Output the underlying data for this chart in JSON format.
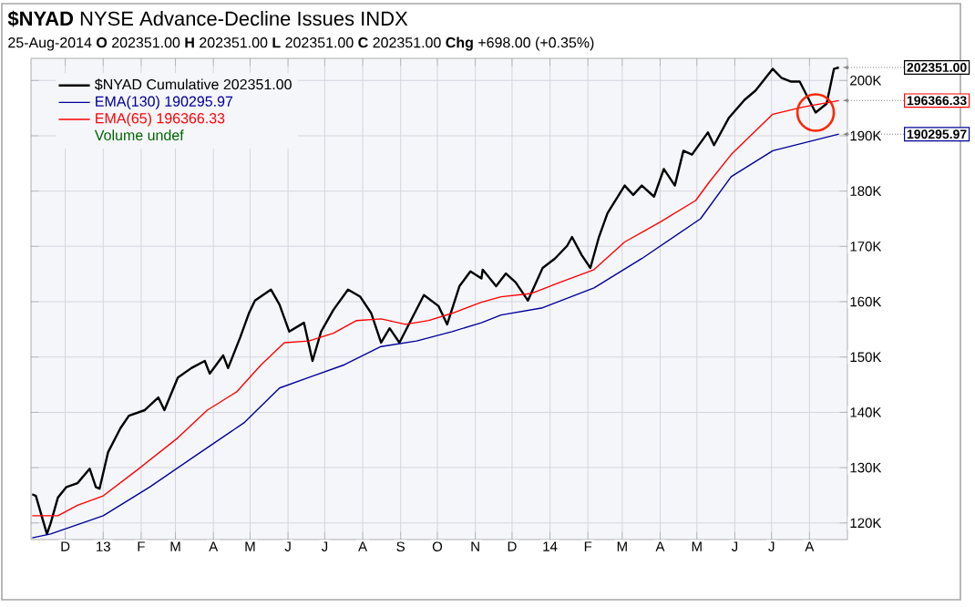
{
  "chart_data": {
    "type": "line",
    "title": "**$NYAD** NYSE Advance-Decline Issues INDX",
    "subtitle": "25-Aug-2014  **O** 202351.00  **H** 202351.00  **L** 202351.00  **C** 202351.00  **Chg** +698.00 (+0.35%)",
    "series": [
      {
        "name": "$NYAD Cumulative 202351.00",
        "color": "#000000",
        "x": [
          "2012-11-04",
          "2012-11-07",
          "2012-11-16",
          "2012-11-19",
          "2012-11-25",
          "2012-12-02",
          "2012-12-11",
          "2012-12-21",
          "2012-12-26",
          "2012-12-29",
          "2013-01-05",
          "2013-01-15",
          "2013-01-22",
          "2013-02-04",
          "2013-02-15",
          "2013-02-20",
          "2013-03-03",
          "2013-03-14",
          "2013-03-25",
          "2013-03-29",
          "2013-04-09",
          "2013-04-13",
          "2013-04-23",
          "2013-04-30",
          "2013-05-05",
          "2013-05-18",
          "2013-05-25",
          "2013-06-02",
          "2013-06-14",
          "2013-06-21",
          "2013-06-28",
          "2013-07-08",
          "2013-07-20",
          "2013-07-30",
          "2013-08-08",
          "2013-08-16",
          "2013-08-23",
          "2013-08-31",
          "2013-09-10",
          "2013-09-20",
          "2013-10-02",
          "2013-10-09",
          "2013-10-19",
          "2013-10-28",
          "2013-11-06",
          "2013-11-07",
          "2013-11-18",
          "2013-11-26",
          "2013-12-04",
          "2013-12-14",
          "2013-12-26",
          "2014-01-05",
          "2014-01-15",
          "2014-01-19",
          "2014-01-27",
          "2014-02-03",
          "2014-02-10",
          "2014-02-17",
          "2014-03-03",
          "2014-03-10",
          "2014-03-17",
          "2014-03-27",
          "2014-04-04",
          "2014-04-13",
          "2014-04-20",
          "2014-04-27",
          "2014-05-10",
          "2014-05-15",
          "2014-05-27",
          "2014-06-09",
          "2014-06-18",
          "2014-07-02",
          "2014-07-09",
          "2014-07-17",
          "2014-07-24",
          "2014-07-30",
          "2014-08-06",
          "2014-08-15",
          "2014-08-21",
          "2014-08-25"
        ],
        "values": [
          125200,
          124900,
          118000,
          119900,
          124600,
          126500,
          127200,
          129800,
          126500,
          126200,
          132800,
          137100,
          139400,
          140400,
          142700,
          140400,
          146300,
          148000,
          149300,
          147000,
          150300,
          148000,
          153600,
          157900,
          160200,
          162200,
          159500,
          154600,
          156200,
          149300,
          154600,
          158500,
          162200,
          160900,
          157900,
          152600,
          155200,
          152600,
          156900,
          161200,
          159200,
          155900,
          162800,
          165500,
          164200,
          165800,
          162800,
          165100,
          163500,
          160200,
          166100,
          167800,
          170100,
          171700,
          168400,
          166100,
          171700,
          176000,
          181000,
          179300,
          181000,
          179000,
          184000,
          181000,
          187300,
          186600,
          190600,
          188300,
          193200,
          196500,
          198200,
          202100,
          200500,
          199800,
          199800,
          197200,
          194200,
          195800,
          202100,
          202351
        ]
      },
      {
        "name": "EMA(130) 190295.97",
        "color": "#000099",
        "x": [
          "2012-11-04",
          "2012-11-19",
          "2013-01-01",
          "2013-02-08",
          "2013-03-17",
          "2013-04-26",
          "2013-05-25",
          "2013-06-18",
          "2013-07-17",
          "2013-08-16",
          "2013-09-14",
          "2013-10-13",
          "2013-11-06",
          "2013-11-22",
          "2013-12-26",
          "2014-02-06",
          "2014-03-17",
          "2014-05-04",
          "2014-05-29",
          "2014-07-02",
          "2014-08-25"
        ],
        "values": [
          117300,
          118000,
          121300,
          126500,
          132100,
          138100,
          144400,
          146300,
          148600,
          151900,
          152900,
          154600,
          156200,
          157600,
          158900,
          162500,
          167800,
          175000,
          182600,
          187300,
          190296
        ]
      },
      {
        "name": "EMA(65) 196366.33",
        "color": "#ff0000",
        "x": [
          "2012-11-04",
          "2012-11-25",
          "2012-12-11",
          "2013-01-01",
          "2013-01-30",
          "2013-03-03",
          "2013-03-27",
          "2013-04-20",
          "2013-05-10",
          "2013-05-29",
          "2013-06-18",
          "2013-07-08",
          "2013-07-27",
          "2013-08-16",
          "2013-09-05",
          "2013-09-24",
          "2013-10-13",
          "2013-11-06",
          "2013-11-22",
          "2013-12-17",
          "2014-01-09",
          "2014-02-06",
          "2014-03-03",
          "2014-04-01",
          "2014-04-30",
          "2014-05-11",
          "2014-05-29",
          "2014-07-02",
          "2014-07-27",
          "2014-08-25"
        ],
        "values": [
          121300,
          121300,
          123200,
          124900,
          129800,
          135400,
          140400,
          143700,
          148600,
          152600,
          152900,
          154300,
          156600,
          156900,
          155900,
          156600,
          157900,
          159900,
          160900,
          161500,
          163500,
          165800,
          170800,
          174400,
          178300,
          181600,
          186600,
          193900,
          195200,
          196366
        ]
      }
    ],
    "annotations": [
      "Volume undef",
      {
        "text": "202351.00",
        "x": "2014-08-25",
        "y": 202351
      },
      {
        "text": "196366.33",
        "x": "2014-08-25",
        "y": 196366
      },
      {
        "text": "190295.97",
        "x": "2014-08-25",
        "y": 190296
      }
    ],
    "xlim": [
      "2012-11-03",
      "2014-09-01"
    ],
    "xticks": [
      {
        "value": "2012-12-01",
        "label": "D"
      },
      {
        "value": "2013-01-01",
        "label": "13"
      },
      {
        "value": "2013-02-01",
        "label": "F"
      },
      {
        "value": "2013-03-01",
        "label": "M"
      },
      {
        "value": "2013-04-01",
        "label": "A"
      },
      {
        "value": "2013-05-01",
        "label": "M"
      },
      {
        "value": "2013-06-01",
        "label": "J"
      },
      {
        "value": "2013-07-01",
        "label": "J"
      },
      {
        "value": "2013-08-01",
        "label": "A"
      },
      {
        "value": "2013-09-01",
        "label": "S"
      },
      {
        "value": "2013-10-01",
        "label": "O"
      },
      {
        "value": "2013-11-01",
        "label": "N"
      },
      {
        "value": "2013-12-01",
        "label": "D"
      },
      {
        "value": "2014-01-01",
        "label": "14"
      },
      {
        "value": "2014-02-01",
        "label": "F"
      },
      {
        "value": "2014-03-01",
        "label": "M"
      },
      {
        "value": "2014-04-01",
        "label": "A"
      },
      {
        "value": "2014-05-01",
        "label": "M"
      },
      {
        "value": "2014-06-01",
        "label": "J"
      },
      {
        "value": "2014-07-01",
        "label": "J"
      },
      {
        "value": "2014-08-01",
        "label": "A"
      }
    ],
    "ylim": [
      117000,
      204000
    ],
    "yticks": [
      {
        "value": 120000,
        "label": "120K"
      },
      {
        "value": 130000,
        "label": "130K"
      },
      {
        "value": 140000,
        "label": "140K"
      },
      {
        "value": 150000,
        "label": "150K"
      },
      {
        "value": 160000,
        "label": "160K"
      },
      {
        "value": 170000,
        "label": "170K"
      },
      {
        "value": 180000,
        "label": "180K"
      },
      {
        "value": 190000,
        "label": "190K"
      },
      {
        "value": 200000,
        "label": "200K"
      }
    ],
    "grid": true,
    "legend": "top left",
    "line_style": "solid",
    "marker": "none"
  }
}
